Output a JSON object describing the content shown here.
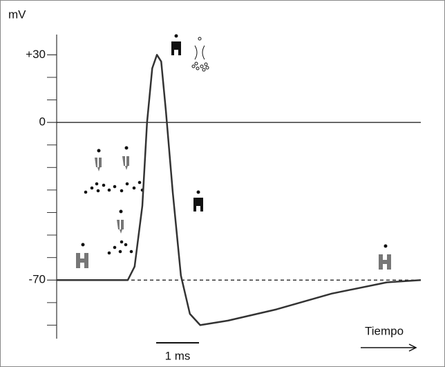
{
  "chart_data": {
    "type": "line",
    "y_label": "mV",
    "x_label": "Tiempo",
    "xlim": [
      0,
      8.5
    ],
    "ylim": [
      -96,
      39
    ],
    "yticks": [
      {
        "value": 30,
        "label": "+30"
      },
      0,
      -70
    ],
    "minor_yticks": [
      -90,
      -80,
      -60,
      -50,
      -40,
      -30,
      -20,
      -10,
      10,
      20
    ],
    "hlines": [
      {
        "value": 0,
        "style": "solid"
      },
      {
        "value": -70,
        "style": "dashed"
      }
    ],
    "scale_bar": {
      "length": 1,
      "label": "1 ms"
    },
    "color": "#333333",
    "x": [
      0,
      1.66,
      1.82,
      2.0,
      2.11,
      2.23,
      2.34,
      2.44,
      2.55,
      2.71,
      2.9,
      3.11,
      3.35,
      4.0,
      5.13,
      6.42,
      7.71,
      8.5
    ],
    "values": [
      -70,
      -70,
      -64,
      -37,
      0,
      24,
      30,
      27,
      5,
      -31,
      -68,
      -85,
      -90,
      -88,
      -83,
      -76,
      -71,
      -70
    ]
  }
}
